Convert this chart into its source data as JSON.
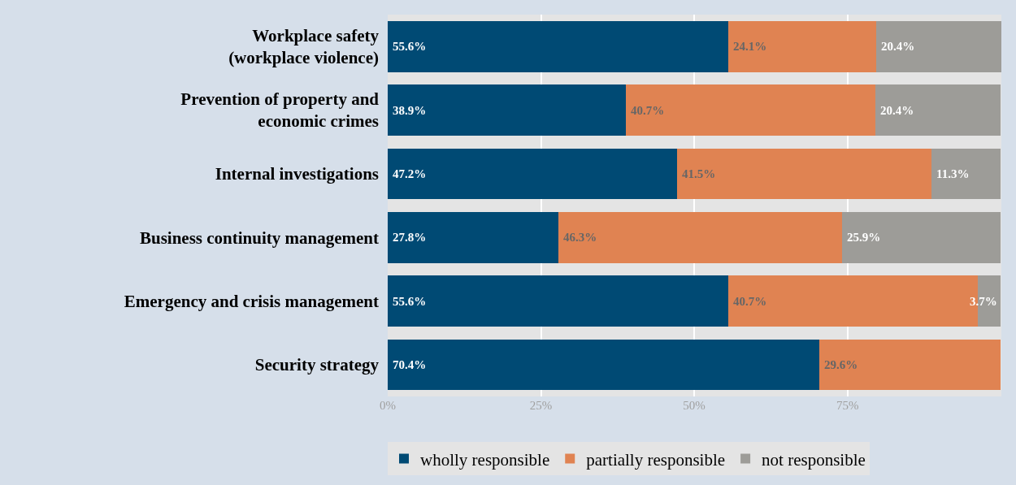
{
  "chart_data": {
    "type": "bar",
    "orientation": "horizontal",
    "stacked": true,
    "categories": [
      "Workplace safety\n(workplace violence)",
      "Prevention of property and\neconomic crimes",
      "Internal investigations",
      "Business continuity management",
      "Emergency and crisis management",
      "Security strategy"
    ],
    "series": [
      {
        "name": "wholly responsible",
        "color": "#004a74",
        "values": [
          55.6,
          38.9,
          47.2,
          27.8,
          55.6,
          70.4
        ],
        "value_labels": [
          "55.6%",
          "38.9%",
          "47.2%",
          "27.8%",
          "55.6%",
          "70.4%"
        ]
      },
      {
        "name": "partially responsible",
        "color": "#e08352",
        "values": [
          24.1,
          40.7,
          41.5,
          46.3,
          40.7,
          29.6
        ],
        "value_labels": [
          "24.1%",
          "40.7%",
          "41.5%",
          "46.3%",
          "40.7%",
          "29.6%"
        ]
      },
      {
        "name": "not responsible",
        "color": "#9d9c98",
        "values": [
          20.4,
          20.4,
          11.3,
          25.9,
          3.7,
          null
        ],
        "value_labels": [
          "20.4%",
          "20.4%",
          "11.3%",
          "25.9%",
          "3.7%",
          null
        ]
      }
    ],
    "xlim": [
      0,
      100.1
    ],
    "xticks": [
      {
        "value": 0,
        "label": "0%"
      },
      {
        "value": 25,
        "label": "25%"
      },
      {
        "value": 50,
        "label": "50%"
      },
      {
        "value": 75,
        "label": "75%"
      },
      {
        "value": 100,
        "label": null
      }
    ],
    "grid": "x",
    "legend": "bottom"
  }
}
